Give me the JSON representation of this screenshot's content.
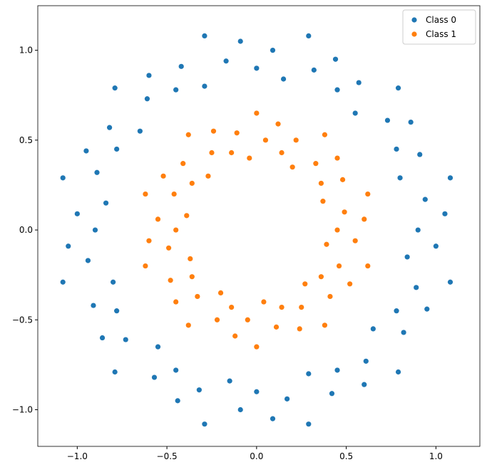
{
  "chart_data": {
    "type": "scatter",
    "xlim": [
      -1.22,
      1.245
    ],
    "ylim": [
      -1.204,
      1.248
    ],
    "xticks": [
      {
        "value": -1.0,
        "label": "−1.0"
      },
      {
        "value": -0.5,
        "label": "−0.5"
      },
      {
        "value": 0.0,
        "label": "0.0"
      },
      {
        "value": 0.5,
        "label": "0.5"
      },
      {
        "value": 1.0,
        "label": "1.0"
      }
    ],
    "yticks": [
      {
        "value": -1.0,
        "label": "−1.0"
      },
      {
        "value": -0.5,
        "label": "−0.5"
      },
      {
        "value": 0.0,
        "label": "0.0"
      },
      {
        "value": 0.5,
        "label": "0.5"
      },
      {
        "value": 1.0,
        "label": "1.0"
      }
    ],
    "legend": "upper right",
    "series": [
      {
        "name": "Class 0",
        "color": "#1f77b4",
        "x": [
          0.9,
          1.05,
          0.94,
          1.08,
          0.8,
          0.91,
          0.78,
          0.86,
          0.73,
          0.79,
          0.55,
          0.57,
          0.45,
          0.44,
          0.32,
          0.29,
          0.15,
          0.09,
          0.0,
          -0.09,
          -0.17,
          -0.29,
          -0.29,
          -0.42,
          -0.45,
          -0.6,
          -0.61,
          -0.79,
          -0.65,
          -0.82,
          -0.78,
          -0.95,
          -0.89,
          -1.08,
          -0.84,
          -1.0,
          -0.9,
          -1.05,
          -0.94,
          -1.08,
          -0.8,
          -0.91,
          -0.78,
          -0.86,
          -0.73,
          -0.79,
          -0.55,
          -0.57,
          -0.45,
          -0.44,
          -0.32,
          -0.29,
          -0.15,
          -0.09,
          0.0,
          0.09,
          0.17,
          0.29,
          0.29,
          0.42,
          0.45,
          0.6,
          0.61,
          0.79,
          0.65,
          0.82,
          0.78,
          0.95,
          0.89,
          1.08,
          0.84,
          1.0
        ],
        "y": [
          0.0,
          0.09,
          0.17,
          0.29,
          0.29,
          0.42,
          0.45,
          0.6,
          0.61,
          0.79,
          0.65,
          0.82,
          0.78,
          0.95,
          0.89,
          1.08,
          0.84,
          1.0,
          0.9,
          1.05,
          0.94,
          1.08,
          0.8,
          0.91,
          0.78,
          0.86,
          0.73,
          0.79,
          0.55,
          0.57,
          0.45,
          0.44,
          0.32,
          0.29,
          0.15,
          0.09,
          0.0,
          -0.09,
          -0.17,
          -0.29,
          -0.29,
          -0.42,
          -0.45,
          -0.6,
          -0.61,
          -0.79,
          -0.65,
          -0.82,
          -0.78,
          -0.95,
          -0.89,
          -1.08,
          -0.84,
          -1.0,
          -0.9,
          -1.05,
          -0.94,
          -1.08,
          -0.8,
          -0.91,
          -0.78,
          -0.86,
          -0.73,
          -0.79,
          -0.55,
          -0.57,
          -0.45,
          -0.44,
          -0.32,
          -0.29,
          -0.15,
          -0.09
        ]
      },
      {
        "name": "Class 1",
        "color": "#ff7f0e",
        "x": [
          0.45,
          0.6,
          0.49,
          0.62,
          0.37,
          0.48,
          0.36,
          0.45,
          0.33,
          0.38,
          0.2,
          0.22,
          0.14,
          0.12,
          0.05,
          0.0,
          -0.04,
          -0.11,
          -0.14,
          -0.24,
          -0.25,
          -0.38,
          -0.27,
          -0.41,
          -0.36,
          -0.52,
          -0.46,
          -0.62,
          -0.39,
          -0.55,
          -0.45,
          -0.6,
          -0.49,
          -0.62,
          -0.37,
          -0.48,
          -0.36,
          -0.45,
          -0.33,
          -0.38,
          -0.2,
          -0.22,
          -0.14,
          -0.12,
          -0.05,
          0.0,
          0.04,
          0.11,
          0.14,
          0.24,
          0.25,
          0.38,
          0.27,
          0.41,
          0.36,
          0.52,
          0.46,
          0.62,
          0.39,
          0.55
        ],
        "y": [
          0.0,
          0.06,
          0.1,
          0.2,
          0.16,
          0.28,
          0.26,
          0.4,
          0.37,
          0.53,
          0.35,
          0.5,
          0.43,
          0.59,
          0.5,
          0.65,
          0.4,
          0.54,
          0.43,
          0.55,
          0.43,
          0.53,
          0.3,
          0.37,
          0.26,
          0.3,
          0.2,
          0.2,
          0.08,
          0.06,
          0.0,
          -0.06,
          -0.1,
          -0.2,
          -0.16,
          -0.28,
          -0.26,
          -0.4,
          -0.37,
          -0.53,
          -0.35,
          -0.5,
          -0.43,
          -0.59,
          -0.5,
          -0.65,
          -0.4,
          -0.54,
          -0.43,
          -0.55,
          -0.43,
          -0.53,
          -0.3,
          -0.37,
          -0.26,
          -0.3,
          -0.2,
          -0.2,
          -0.08,
          -0.06
        ]
      }
    ]
  }
}
